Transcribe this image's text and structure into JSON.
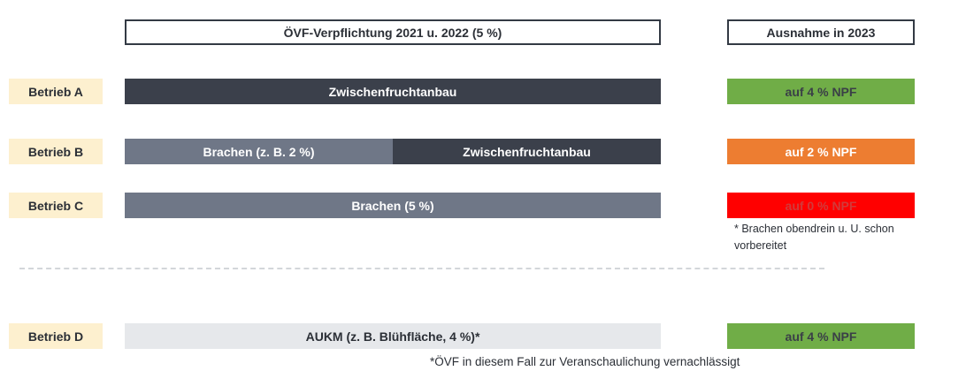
{
  "headers": {
    "obligation": "ÖVF-Verpflichtung 2021 u. 2022 (5 %)",
    "exception": "Ausnahme in 2023"
  },
  "farms": {
    "a": {
      "label": "Betrieb A",
      "segments": [
        {
          "text": "Zwischenfruchtanbau",
          "share": 1.0
        }
      ],
      "exception": "auf 4 % NPF"
    },
    "b": {
      "label": "Betrieb B",
      "segments": [
        {
          "text": "Brachen (z. B. 2 %)",
          "share": 0.5
        },
        {
          "text": "Zwischenfruchtanbau",
          "share": 0.5
        }
      ],
      "exception": "auf 2 % NPF"
    },
    "c": {
      "label": "Betrieb C",
      "segments": [
        {
          "text": "Brachen (5 %)",
          "share": 1.0
        }
      ],
      "exception": "auf 0 % NPF",
      "note": "* Brachen obendrein u. U. schon vorbereitet"
    },
    "d": {
      "label": "Betrieb D",
      "segments": [
        {
          "text": "AUKM (z. B. Blühfläche, 4 %)*",
          "share": 1.0
        }
      ],
      "exception": "auf 4 % NPF"
    }
  },
  "footnote": "*ÖVF in diesem Fall zur Veranschaulichung vernachlässigt",
  "colors": {
    "dark_bar": "#3b404b",
    "mid_bar": "#6f7787",
    "light_bar": "#e6e8eb",
    "label_bg": "#fdf0cf",
    "green": "#70ad47",
    "orange": "#ed7d31",
    "red": "#ff0000"
  }
}
